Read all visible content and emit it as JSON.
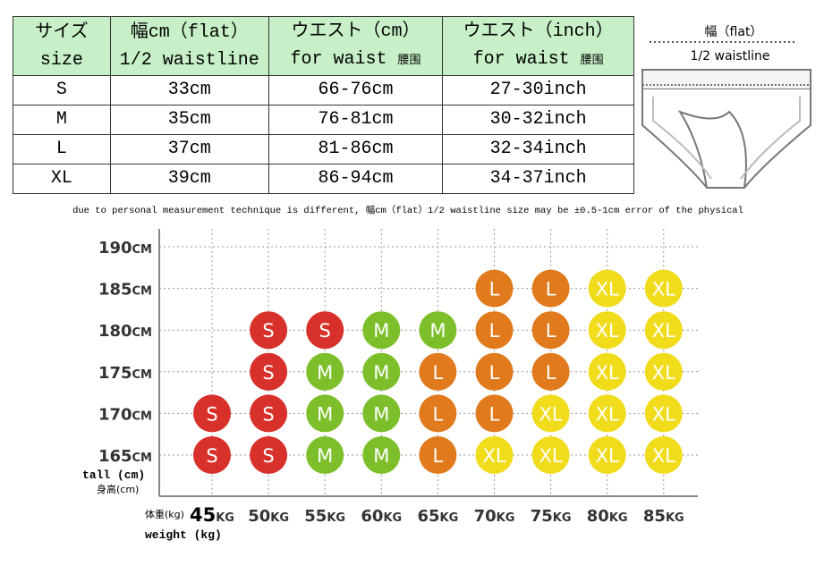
{
  "table": {
    "header": [
      {
        "lines": [
          "サイズ",
          "size"
        ]
      },
      {
        "lines": [
          "幅cm（flat）",
          "1/2 waistline"
        ]
      },
      {
        "lines": [
          "ウエスト（cm）",
          "for waist "
        ],
        "small": "腰围"
      },
      {
        "lines": [
          "ウエスト（inch）",
          "for waist "
        ],
        "small": "腰围"
      }
    ],
    "rows": [
      [
        "S",
        "33cm",
        "66-76cm",
        "27-30inch"
      ],
      [
        "M",
        "35cm",
        "76-81cm",
        "30-32inch"
      ],
      [
        "L",
        "37cm",
        "81-86cm",
        "32-34inch"
      ],
      [
        "XL",
        "39cm",
        "86-94cm",
        "34-37inch"
      ]
    ]
  },
  "diagram": {
    "flat": "幅（flat）",
    "waistline": "1/2 waistline"
  },
  "note": "due to personal measurement technique is different, 幅cm（flat）1/2 waistline size may be ±0.5-1cm error of the physical",
  "size_grid": {
    "size_colors": {
      "S": "#d8302b",
      "M": "#7dbf2b",
      "L": "#e07a1c",
      "XL": "#f1dc1c"
    },
    "y_label": "tall (cm)",
    "y_label_cn": "身高(cm)",
    "x_label_cn": "体重(kg)",
    "x_label": "weight (kg)",
    "columns": [
      {
        "weight": "45",
        "unit": "KG"
      },
      {
        "weight": "50",
        "unit": "KG"
      },
      {
        "weight": "55",
        "unit": "KG"
      },
      {
        "weight": "60",
        "unit": "KG"
      },
      {
        "weight": "65",
        "unit": "KG"
      },
      {
        "weight": "70",
        "unit": "KG"
      },
      {
        "weight": "75",
        "unit": "KG"
      },
      {
        "weight": "80",
        "unit": "KG"
      },
      {
        "weight": "85",
        "unit": "KG"
      }
    ],
    "rows": [
      {
        "height": "190",
        "unit": "CM",
        "cells": [
          null,
          null,
          null,
          null,
          null,
          null,
          null,
          null,
          null
        ]
      },
      {
        "height": "185",
        "unit": "CM",
        "cells": [
          null,
          null,
          null,
          null,
          null,
          "L",
          "L",
          "XL",
          "XL"
        ]
      },
      {
        "height": "180",
        "unit": "CM",
        "cells": [
          null,
          "S",
          "S",
          "M",
          "M",
          "L",
          "L",
          "XL",
          "XL"
        ]
      },
      {
        "height": "175",
        "unit": "CM",
        "cells": [
          null,
          "S",
          "M",
          "M",
          "L",
          "L",
          "L",
          "XL",
          "XL"
        ]
      },
      {
        "height": "170",
        "unit": "CM",
        "cells": [
          "S",
          "S",
          "M",
          "M",
          "L",
          "L",
          "XL",
          "XL",
          "XL"
        ]
      },
      {
        "height": "165",
        "unit": "CM",
        "cells": [
          "S",
          "S",
          "M",
          "M",
          "L",
          "XL",
          "XL",
          "XL",
          "XL"
        ]
      }
    ]
  }
}
